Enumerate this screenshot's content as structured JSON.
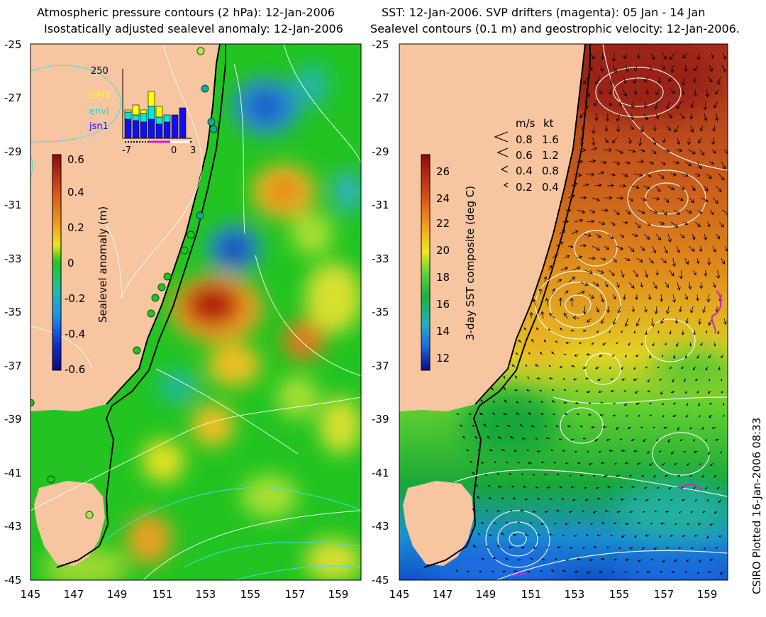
{
  "left_panel": {
    "title_line1": "Atmospheric pressure contours (2 hPa): 12-Jan-2006",
    "title_line2": "Isostatically adjusted sealevel anomaly: 12-Jan-2006",
    "colorbar": {
      "label": "Sealevel anomaly (m)",
      "ticks": [
        "0.6",
        "0.4",
        "0.2",
        "0",
        "-0.2",
        "-0.4",
        "-0.6"
      ]
    },
    "inset": {
      "ymax_label": "250",
      "x_ticks": [
        "-7",
        "0",
        "3"
      ],
      "legend": [
        {
          "label": "GFO",
          "color": "#ffff00"
        },
        {
          "label": "envi",
          "color": "#00e5e5"
        },
        {
          "label": "jsn1",
          "color": "#1010ee"
        }
      ]
    }
  },
  "right_panel": {
    "title_line1": "SST: 12-Jan-2006. SVP drifters (magenta): 05 Jan - 14 Jan",
    "title_line2": "Sealevel contours (0.1 m) and geostrophic velocity: 12-Jan-2006.",
    "colorbar": {
      "label": "3-day SST composite (deg C)",
      "ticks": [
        "26",
        "24",
        "22",
        "20",
        "18",
        "16",
        "14",
        "12"
      ]
    },
    "vector_legend": {
      "header_ms": "m/s",
      "header_kt": "kt",
      "rows": [
        {
          "ms": "0.8",
          "kt": "1.6"
        },
        {
          "ms": "0.6",
          "kt": "1.2"
        },
        {
          "ms": "0.4",
          "kt": "0.8"
        },
        {
          "ms": "0.2",
          "kt": "0.4"
        }
      ]
    }
  },
  "axes": {
    "lat_labels": [
      "-25",
      "-27",
      "-29",
      "-31",
      "-33",
      "-35",
      "-37",
      "-39",
      "-41",
      "-43",
      "-45"
    ],
    "lon_labels": [
      "145",
      "147",
      "149",
      "151",
      "153",
      "155",
      "157",
      "159"
    ]
  },
  "credit": "CSIRO Plotted 16-Jan-2006 08:33",
  "colors": {
    "land": "#f7c59f",
    "anomaly_zero": "#22c422",
    "sst_warm": "#b83a1a",
    "drifter": "#d020d0",
    "contour": "#ffffff",
    "pressure_contour": "#40e0e0"
  }
}
